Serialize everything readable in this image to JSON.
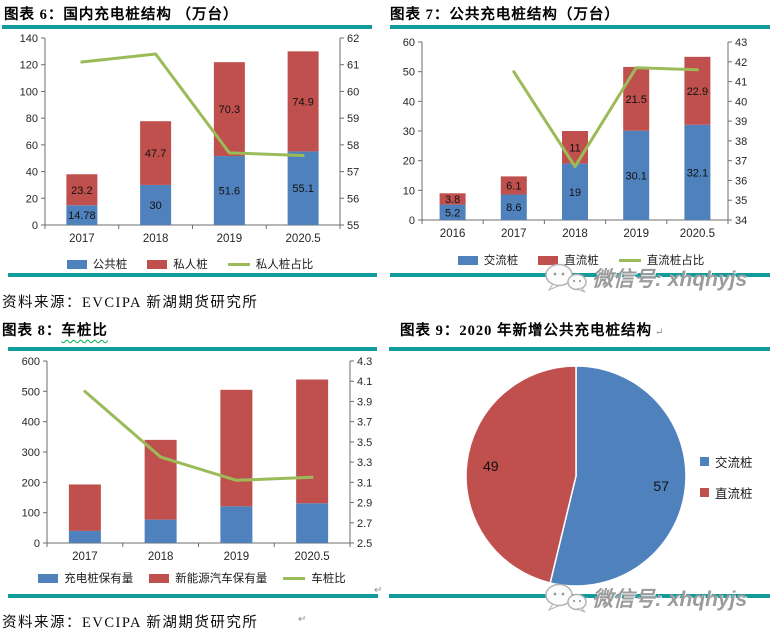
{
  "page": {
    "background": "#ffffff"
  },
  "colors": {
    "bar_blue": "#4F81BD",
    "bar_red": "#C0504D",
    "line_green": "#9BBB59",
    "rule_teal": "#129B9B",
    "watermark_gray": "#9c9c9c"
  },
  "sources": {
    "row1": "资料来源：EVCIPA 新湖期货研究所",
    "row2": "资料来源：EVCIPA 新湖期货研究所"
  },
  "watermark": {
    "label": "微信号: xhqhyjs",
    "icon": "wechat-chat-bubbles-icon"
  },
  "artifacts": {
    "return_mark": "↵"
  },
  "chart_data": [
    {
      "id": "figure-6",
      "type": "bar",
      "title": "图表 6：国内充电桩结构 （万台）",
      "categories": [
        "2017",
        "2018",
        "2019",
        "2020.5"
      ],
      "series": [
        {
          "name": "公共桩",
          "kind": "bar",
          "color": "#4F81BD",
          "values": [
            14.78,
            30,
            51.6,
            55.1
          ],
          "labels": [
            "14.78",
            "30",
            "51.6",
            "55.1"
          ]
        },
        {
          "name": "私人桩",
          "kind": "bar",
          "color": "#C0504D",
          "values": [
            23.2,
            47.7,
            70.3,
            74.9
          ],
          "labels": [
            "23.2",
            "47.7",
            "70.3",
            "74.9"
          ]
        },
        {
          "name": "私人桩占比",
          "kind": "line",
          "axis": "right",
          "color": "#9BBB59",
          "values": [
            61.1,
            61.4,
            57.7,
            57.6
          ]
        }
      ],
      "left_axis": {
        "min": 0,
        "max": 140,
        "step": 20
      },
      "right_axis": {
        "min": 55,
        "max": 62,
        "step": 1
      },
      "legend_position": "bottom",
      "grid": false
    },
    {
      "id": "figure-7",
      "type": "bar",
      "title": "图表 7：公共充电桩结构（万台）",
      "categories": [
        "2016",
        "2017",
        "2018",
        "2019",
        "2020.5"
      ],
      "series": [
        {
          "name": "交流桩",
          "kind": "bar",
          "color": "#4F81BD",
          "values": [
            5.2,
            8.6,
            19,
            30.1,
            32.1
          ],
          "labels": [
            "5.2",
            "8.6",
            "19",
            "30.1",
            "32.1"
          ]
        },
        {
          "name": "直流桩",
          "kind": "bar",
          "color": "#C0504D",
          "values": [
            3.8,
            6.1,
            11,
            21.5,
            22.9
          ],
          "labels": [
            "3.8",
            "6.1",
            "11",
            "21.5",
            "22.9"
          ]
        },
        {
          "name": "直流桩占比",
          "kind": "line",
          "axis": "right",
          "color": "#9BBB59",
          "values": [
            null,
            41.5,
            36.7,
            41.7,
            41.6
          ]
        }
      ],
      "left_axis": {
        "min": 0,
        "max": 60,
        "step": 10
      },
      "right_axis": {
        "min": 34,
        "max": 43,
        "step": 1
      },
      "legend_position": "bottom",
      "grid": false
    },
    {
      "id": "figure-8",
      "type": "bar",
      "title": "图表 8：车桩比",
      "title_parts": {
        "prefix": "图表 8：",
        "underlined": "车桩比"
      },
      "categories": [
        "2017",
        "2018",
        "2019",
        "2020.5"
      ],
      "series": [
        {
          "name": "充电桩保有量",
          "kind": "bar",
          "color": "#4F81BD",
          "values": [
            40,
            77,
            121,
            131
          ]
        },
        {
          "name": "新能源汽车保有量",
          "kind": "bar",
          "color": "#C0504D",
          "values": [
            153,
            263,
            384,
            408
          ]
        },
        {
          "name": "车桩比",
          "kind": "line",
          "axis": "right",
          "color": "#9BBB59",
          "values": [
            4.0,
            3.35,
            3.12,
            3.15
          ]
        }
      ],
      "left_axis": {
        "min": 0,
        "max": 600,
        "step": 100
      },
      "right_axis": {
        "min": 2.5,
        "max": 4.3,
        "step": 0.2
      },
      "legend_position": "bottom",
      "grid": false
    },
    {
      "id": "figure-9",
      "type": "pie",
      "title": "图表 9：2020 年新增公共充电桩结构",
      "slices": [
        {
          "name": "交流桩",
          "value": 57,
          "color": "#4F81BD"
        },
        {
          "name": "直流桩",
          "value": 49,
          "color": "#C0504D"
        }
      ],
      "legend_position": "right"
    }
  ]
}
